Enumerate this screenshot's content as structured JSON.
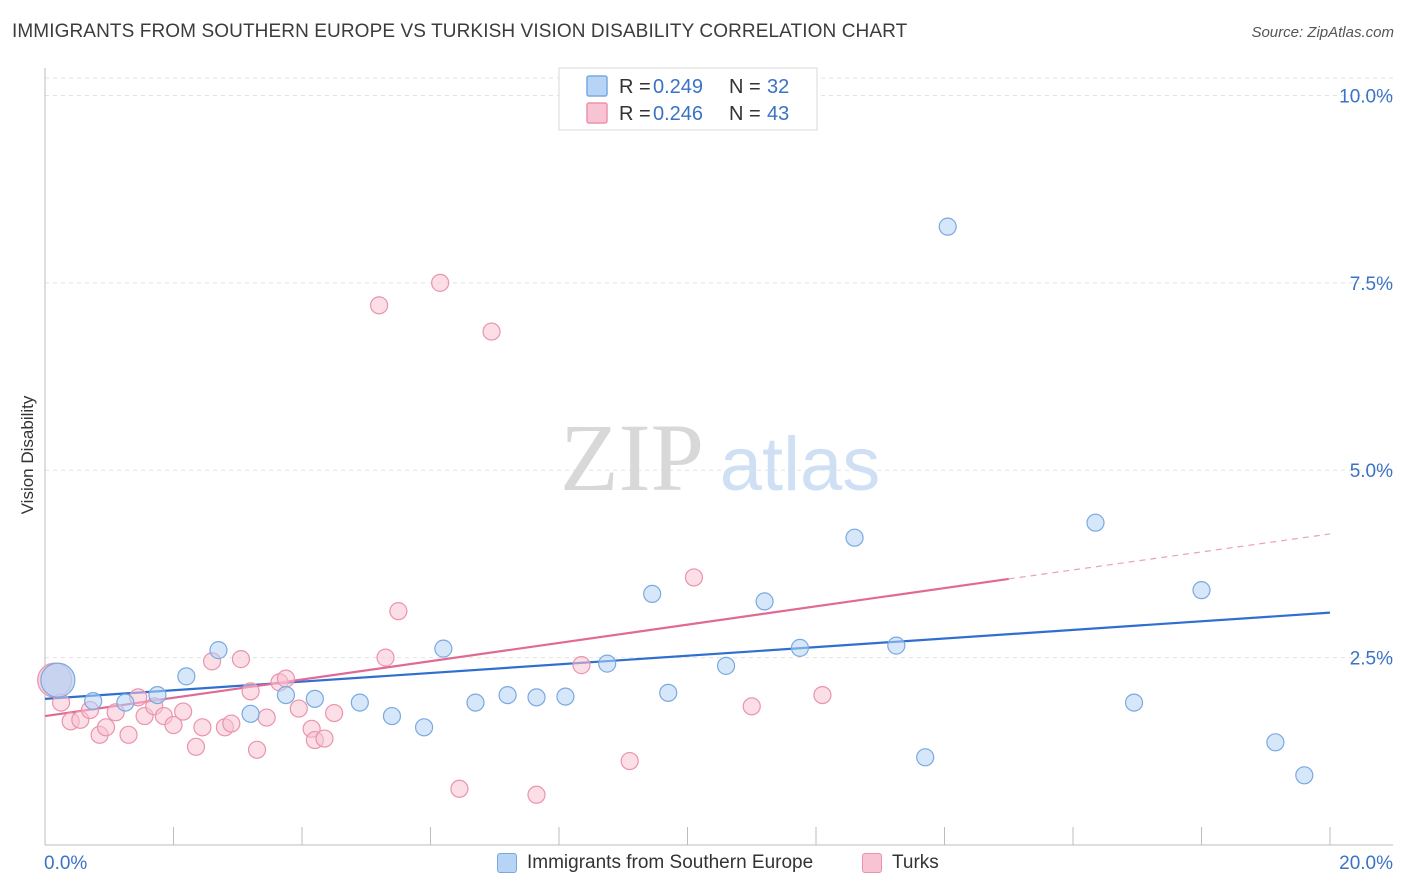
{
  "header": {
    "title": "IMMIGRANTS FROM SOUTHERN EUROPE VS TURKISH VISION DISABILITY CORRELATION CHART",
    "source": "Source: ZipAtlas.com"
  },
  "watermark": {
    "zip": "ZIP",
    "atlas": "atlas"
  },
  "legend_top": [
    {
      "r_label": "R =",
      "r_value": "0.249",
      "n_label": "N =",
      "n_value": "32"
    },
    {
      "r_label": "R =",
      "r_value": "0.246",
      "n_label": "N =",
      "n_value": "43"
    }
  ],
  "colors": {
    "blue_fill": "#b7d3f5",
    "blue_stroke": "#7aa9e0",
    "blue_line": "#2f6fd0",
    "pink_fill": "#f8c3d2",
    "pink_stroke": "#eb93ad",
    "pink_line": "#e06a95",
    "accent_text": "#3a73c6"
  },
  "chart_data": {
    "type": "scatter",
    "title": "IMMIGRANTS FROM SOUTHERN EUROPE VS TURKISH VISION DISABILITY CORRELATION CHART",
    "xlabel": "",
    "ylabel": "Vision Disability",
    "xlim": [
      0,
      20
    ],
    "ylim": [
      0,
      10.5
    ],
    "x_tick_labels": [
      "0.0%",
      "20.0%"
    ],
    "y_ticks": [
      2.5,
      5.0,
      7.5,
      10.0
    ],
    "y_tick_labels": [
      "2.5%",
      "5.0%",
      "7.5%",
      "10.0%"
    ],
    "grid": "horizontal dashed",
    "legend_placement": "top-center and bottom",
    "series": [
      {
        "name": "Immigrants from Southern Europe",
        "color": "#b7d3f5",
        "r": 0.249,
        "n": 32,
        "trend": {
          "x": [
            0,
            20
          ],
          "y": [
            1.95,
            3.1
          ]
        },
        "points": [
          {
            "x": 0.2,
            "y": 2.2,
            "big": true
          },
          {
            "x": 0.75,
            "y": 1.92
          },
          {
            "x": 1.25,
            "y": 1.9
          },
          {
            "x": 1.75,
            "y": 2.0
          },
          {
            "x": 2.2,
            "y": 2.25
          },
          {
            "x": 2.7,
            "y": 2.6
          },
          {
            "x": 3.2,
            "y": 1.75
          },
          {
            "x": 3.75,
            "y": 2.0
          },
          {
            "x": 4.2,
            "y": 1.95
          },
          {
            "x": 4.9,
            "y": 1.9
          },
          {
            "x": 5.4,
            "y": 1.72
          },
          {
            "x": 5.9,
            "y": 1.57
          },
          {
            "x": 6.2,
            "y": 2.62
          },
          {
            "x": 6.7,
            "y": 1.9
          },
          {
            "x": 7.2,
            "y": 2.0
          },
          {
            "x": 7.65,
            "y": 1.97
          },
          {
            "x": 8.1,
            "y": 1.98
          },
          {
            "x": 8.75,
            "y": 2.42
          },
          {
            "x": 9.45,
            "y": 3.35
          },
          {
            "x": 9.7,
            "y": 2.03
          },
          {
            "x": 10.6,
            "y": 2.39
          },
          {
            "x": 11.2,
            "y": 3.25
          },
          {
            "x": 11.75,
            "y": 2.63
          },
          {
            "x": 12.6,
            "y": 4.1
          },
          {
            "x": 13.25,
            "y": 2.66
          },
          {
            "x": 13.7,
            "y": 1.17
          },
          {
            "x": 14.05,
            "y": 8.25
          },
          {
            "x": 16.35,
            "y": 4.3
          },
          {
            "x": 16.95,
            "y": 1.9
          },
          {
            "x": 18.0,
            "y": 3.4
          },
          {
            "x": 19.15,
            "y": 1.37
          },
          {
            "x": 19.6,
            "y": 0.93
          }
        ]
      },
      {
        "name": "Turks",
        "color": "#f8c3d2",
        "r": 0.246,
        "n": 43,
        "trend": {
          "x": [
            0,
            15
          ],
          "y": [
            1.72,
            3.55
          ]
        },
        "trend_dashed": {
          "x": [
            15,
            20
          ],
          "y": [
            3.55,
            4.15
          ]
        },
        "points": [
          {
            "x": 0.15,
            "y": 2.2,
            "big": true
          },
          {
            "x": 0.25,
            "y": 1.9
          },
          {
            "x": 0.4,
            "y": 1.65
          },
          {
            "x": 0.55,
            "y": 1.67
          },
          {
            "x": 0.7,
            "y": 1.8
          },
          {
            "x": 0.85,
            "y": 1.47
          },
          {
            "x": 0.95,
            "y": 1.57
          },
          {
            "x": 1.1,
            "y": 1.77
          },
          {
            "x": 1.3,
            "y": 1.47
          },
          {
            "x": 1.45,
            "y": 1.97
          },
          {
            "x": 1.55,
            "y": 1.72
          },
          {
            "x": 1.7,
            "y": 1.85
          },
          {
            "x": 1.85,
            "y": 1.72
          },
          {
            "x": 2.0,
            "y": 1.6
          },
          {
            "x": 2.15,
            "y": 1.78
          },
          {
            "x": 2.35,
            "y": 1.31
          },
          {
            "x": 2.45,
            "y": 1.57
          },
          {
            "x": 2.6,
            "y": 2.45
          },
          {
            "x": 2.8,
            "y": 1.57
          },
          {
            "x": 2.9,
            "y": 1.62
          },
          {
            "x": 3.05,
            "y": 2.48
          },
          {
            "x": 3.2,
            "y": 2.05
          },
          {
            "x": 3.3,
            "y": 1.27
          },
          {
            "x": 3.45,
            "y": 1.7
          },
          {
            "x": 3.65,
            "y": 2.17
          },
          {
            "x": 3.75,
            "y": 2.22
          },
          {
            "x": 3.95,
            "y": 1.82
          },
          {
            "x": 4.15,
            "y": 1.55
          },
          {
            "x": 4.2,
            "y": 1.4
          },
          {
            "x": 4.35,
            "y": 1.42
          },
          {
            "x": 4.5,
            "y": 1.76
          },
          {
            "x": 5.2,
            "y": 7.2
          },
          {
            "x": 5.3,
            "y": 2.5
          },
          {
            "x": 5.5,
            "y": 3.12
          },
          {
            "x": 6.15,
            "y": 7.5
          },
          {
            "x": 6.45,
            "y": 0.75
          },
          {
            "x": 6.95,
            "y": 6.85
          },
          {
            "x": 7.65,
            "y": 0.67
          },
          {
            "x": 8.35,
            "y": 2.4
          },
          {
            "x": 9.1,
            "y": 1.12
          },
          {
            "x": 10.1,
            "y": 3.57
          },
          {
            "x": 11.0,
            "y": 1.85
          },
          {
            "x": 12.1,
            "y": 2.0
          }
        ]
      }
    ]
  },
  "bottom_legend": [
    {
      "label": "Immigrants from Southern Europe"
    },
    {
      "label": "Turks"
    }
  ]
}
